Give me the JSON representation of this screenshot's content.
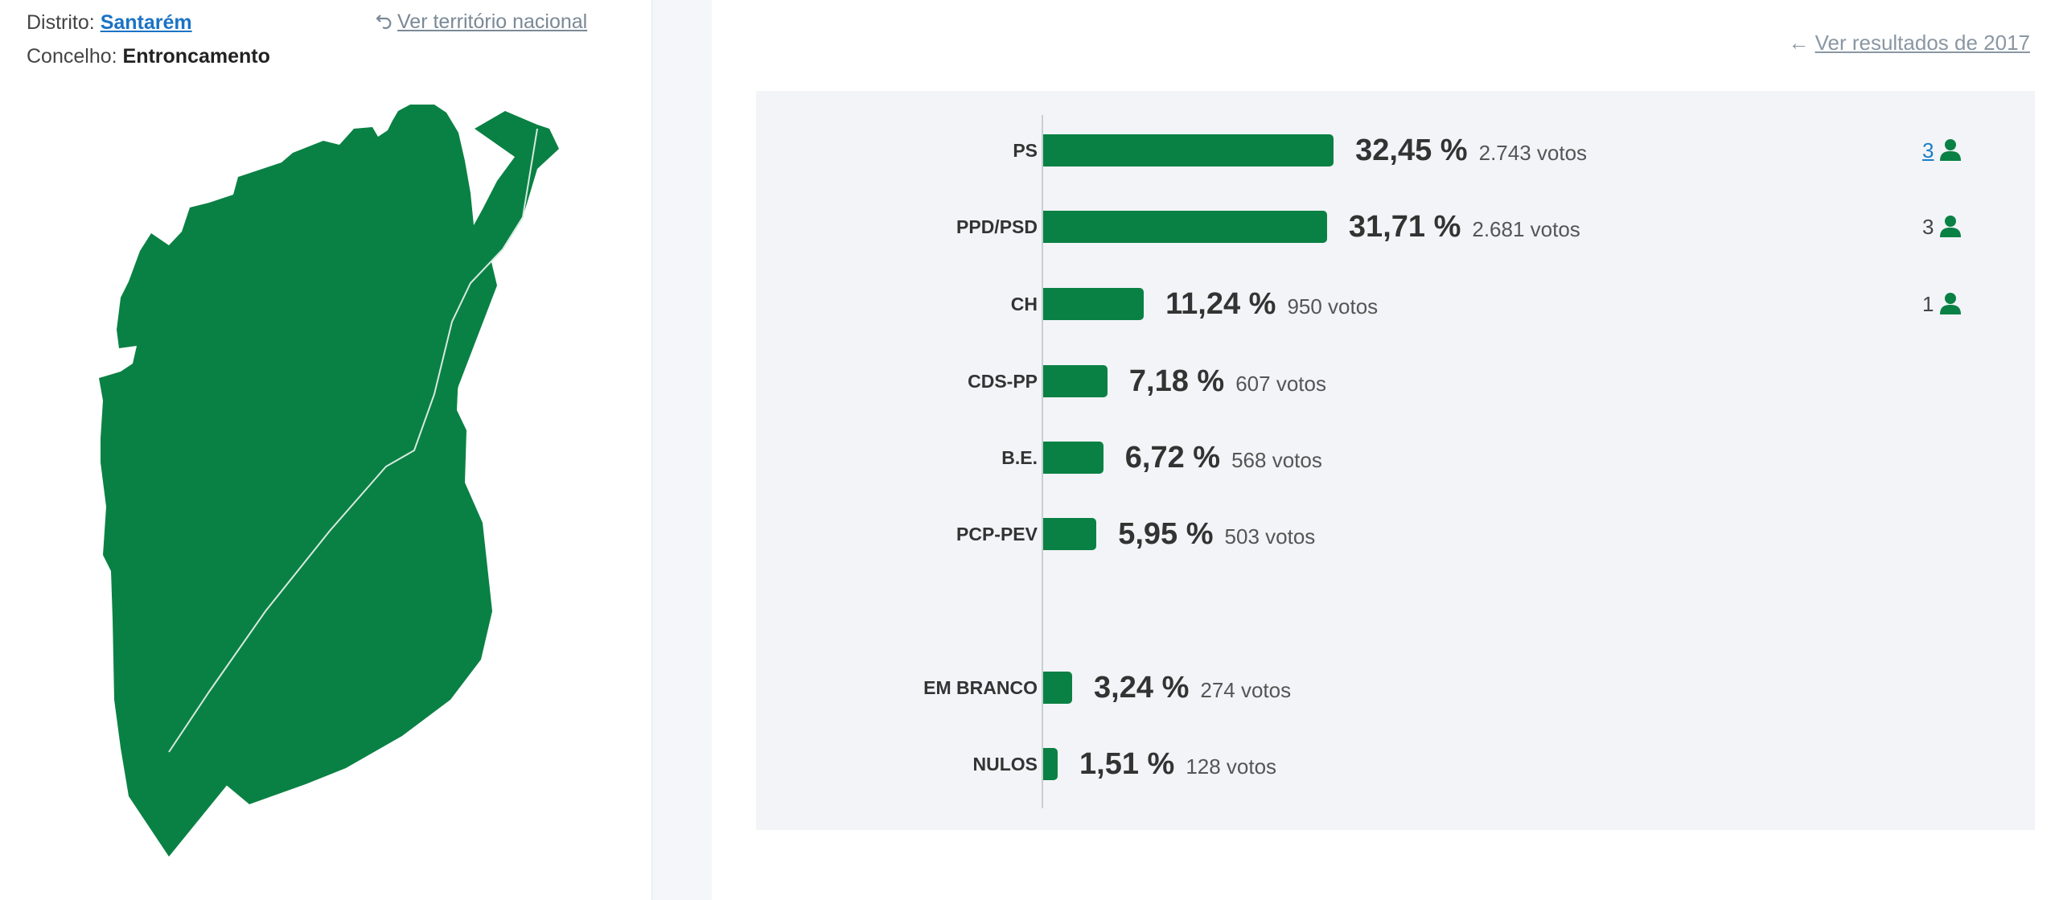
{
  "location": {
    "district_label": "Distrito:",
    "district_value": "Santarém",
    "council_label": "Concelho:",
    "council_value": "Entroncamento",
    "national_link": "Ver território nacional"
  },
  "header": {
    "back_link": "Ver resultados de 2017"
  },
  "colors": {
    "bar": "#0a8144",
    "map_fill": "#0a8144",
    "link": "#1a73c4",
    "panel_bg": "#f2f4f7"
  },
  "results": [
    {
      "party": "PS",
      "pct": "32,45 %",
      "votes": "2.743 votos",
      "seats": "3",
      "seats_link": true,
      "value": 32.45
    },
    {
      "party": "PPD/PSD",
      "pct": "31,71 %",
      "votes": "2.681 votos",
      "seats": "3",
      "seats_link": false,
      "value": 31.71
    },
    {
      "party": "CH",
      "pct": "11,24 %",
      "votes": "950 votos",
      "seats": "1",
      "seats_link": false,
      "value": 11.24
    },
    {
      "party": "CDS-PP",
      "pct": "7,18 %",
      "votes": "607 votos",
      "seats": "",
      "seats_link": false,
      "value": 7.18
    },
    {
      "party": "B.E.",
      "pct": "6,72 %",
      "votes": "568 votos",
      "seats": "",
      "seats_link": false,
      "value": 6.72
    },
    {
      "party": "PCP-PEV",
      "pct": "5,95 %",
      "votes": "503 votos",
      "seats": "",
      "seats_link": false,
      "value": 5.95
    }
  ],
  "others": [
    {
      "party": "EM BRANCO",
      "pct": "3,24 %",
      "votes": "274 votos",
      "value": 3.24
    },
    {
      "party": "NULOS",
      "pct": "1,51 %",
      "votes": "128 votos",
      "value": 1.51
    }
  ]
}
